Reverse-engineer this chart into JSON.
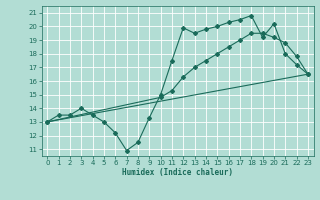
{
  "xlabel": "Humidex (Indice chaleur)",
  "bg_color": "#b2ddd4",
  "grid_color": "#d4ece8",
  "line_color": "#1a6b5a",
  "xlim": [
    -0.5,
    23.5
  ],
  "ylim": [
    10.5,
    21.5
  ],
  "yticks": [
    11,
    12,
    13,
    14,
    15,
    16,
    17,
    18,
    19,
    20,
    21
  ],
  "xticks": [
    0,
    1,
    2,
    3,
    4,
    5,
    6,
    7,
    8,
    9,
    10,
    11,
    12,
    13,
    14,
    15,
    16,
    17,
    18,
    19,
    20,
    21,
    22,
    23
  ],
  "line1_x": [
    0,
    1,
    2,
    3,
    4,
    5,
    6,
    7,
    8,
    9,
    10,
    11,
    12,
    13,
    14,
    15,
    16,
    17,
    18,
    19,
    20,
    21,
    22,
    23
  ],
  "line1_y": [
    13.0,
    13.5,
    13.5,
    14.0,
    13.5,
    13.0,
    12.2,
    10.9,
    11.5,
    13.3,
    15.0,
    17.5,
    19.9,
    19.5,
    19.8,
    20.0,
    20.3,
    20.5,
    20.8,
    19.2,
    20.2,
    18.0,
    17.2,
    16.5
  ],
  "line2_x": [
    0,
    23
  ],
  "line2_y": [
    13.0,
    16.5
  ],
  "line3_x": [
    0,
    10,
    11,
    12,
    13,
    14,
    15,
    16,
    17,
    18,
    19,
    20,
    21,
    22,
    23
  ],
  "line3_y": [
    13.0,
    14.8,
    15.3,
    16.3,
    17.0,
    17.5,
    18.0,
    18.5,
    19.0,
    19.5,
    19.5,
    19.2,
    18.8,
    17.8,
    16.5
  ]
}
